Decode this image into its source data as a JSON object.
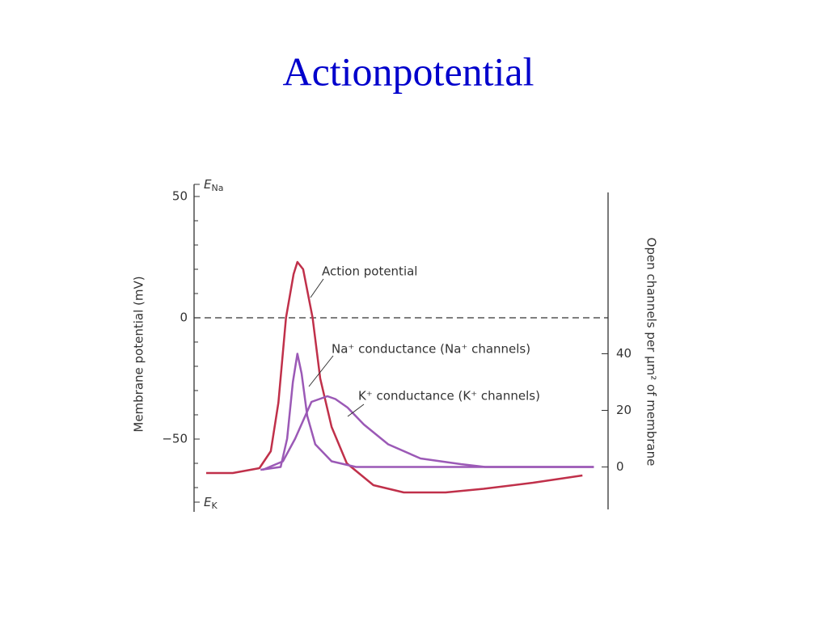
{
  "chart_data": {
    "type": "line",
    "title": "Actionpotential",
    "ylabel": "Membrane potential (mV)",
    "y2label": "Open channels per μm² of membrane",
    "xlim": [
      0,
      100
    ],
    "ylim": [
      -80,
      55
    ],
    "yticks": [
      50,
      0,
      {
        "value": -50,
        "label": "−50"
      }
    ],
    "yminorticks": [
      40,
      30,
      20,
      10,
      -10,
      -20,
      -30,
      -40,
      -60,
      -70
    ],
    "y2lim": [
      -15,
      97
    ],
    "y2ticks": [
      0,
      20,
      40
    ],
    "hline": 0,
    "axis_markers": [
      {
        "main": "E",
        "sub": "Na",
        "value": 55
      },
      {
        "main": "E",
        "sub": "K",
        "value": -76
      }
    ],
    "series": [
      {
        "name": "Action potential",
        "color": "#c0304a",
        "x": [
          0,
          7,
          14,
          17,
          19,
          21,
          23,
          24,
          25.5,
          28,
          30,
          33,
          37,
          44,
          52,
          63,
          73,
          86,
          99
        ],
        "values": [
          -64,
          -64,
          -62,
          -55,
          -35,
          0,
          18,
          23,
          20,
          0,
          -25,
          -45,
          -60,
          -69,
          -72,
          -72,
          -70.5,
          -68,
          -65
        ]
      },
      {
        "name": "Na⁺ conductance (Na⁺ channels)",
        "color": "#9b59b6",
        "axis": "y2",
        "x": [
          14.3,
          19.6,
          21.3,
          22.8,
          24,
          25.1,
          26.6,
          28.7,
          33,
          39.4,
          52.1,
          73.4,
          102
        ],
        "values": [
          -1,
          0,
          10,
          30,
          40,
          33,
          18,
          8,
          2,
          0,
          0,
          0,
          0
        ]
      },
      {
        "name": "K⁺ conductance (K⁺ channels)",
        "color": "#9b59b6",
        "axis": "y2",
        "x": [
          14.9,
          20.2,
          23.4,
          27.7,
          31.9,
          34,
          37.2,
          41.5,
          47.9,
          56.4,
          67,
          73.4,
          102
        ],
        "values": [
          -1,
          2,
          10,
          23,
          25,
          24,
          21,
          15,
          8,
          3,
          1,
          0,
          0
        ]
      }
    ]
  }
}
